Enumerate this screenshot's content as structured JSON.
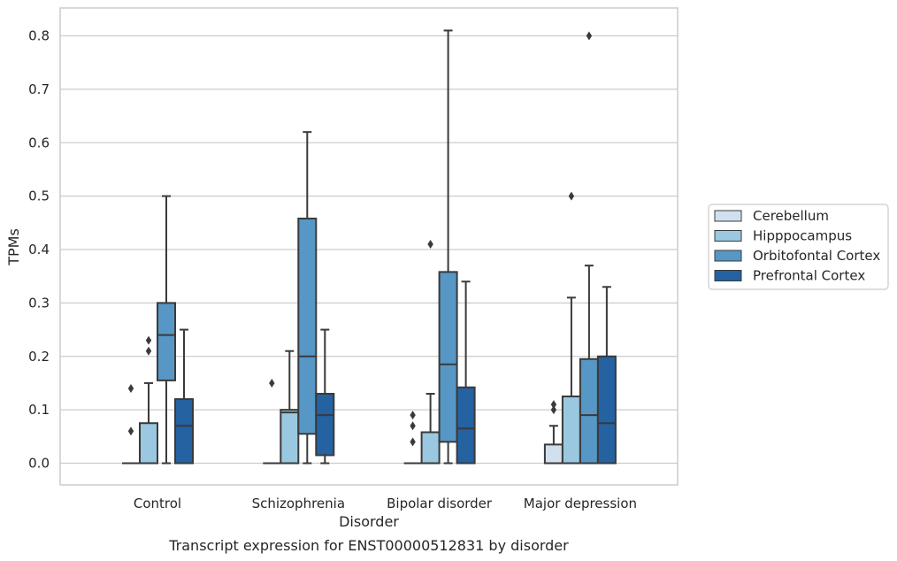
{
  "chart_data": {
    "type": "box",
    "caption": "Transcript expression for ENST00000512831 by disorder",
    "xlabel": "Disorder",
    "ylabel": "TPMs",
    "ylim": [
      -0.04,
      0.85
    ],
    "yticks": [
      "0.0",
      "0.1",
      "0.2",
      "0.3",
      "0.4",
      "0.5",
      "0.6",
      "0.7",
      "0.8"
    ],
    "grid": "horizontal",
    "legend_position": "right",
    "categories": [
      "Control",
      "Schizophrenia",
      "Bipolar disorder",
      "Major depression"
    ],
    "series": [
      {
        "name": "Cerebellum",
        "color": "#d1e0ef",
        "boxes": [
          {
            "min": 0,
            "q1": 0,
            "median": 0,
            "q3": 0,
            "max": 0,
            "outliers": [
              0.06,
              0.14
            ]
          },
          {
            "min": 0,
            "q1": 0,
            "median": 0,
            "q3": 0,
            "max": 0,
            "outliers": [
              0.15
            ]
          },
          {
            "min": 0,
            "q1": 0,
            "median": 0,
            "q3": 0,
            "max": 0,
            "outliers": [
              0.04,
              0.07,
              0.09
            ]
          },
          {
            "min": 0,
            "q1": 0,
            "median": 0,
            "q3": 0.035,
            "max": 0.07,
            "outliers": [
              0.1,
              0.11
            ]
          }
        ]
      },
      {
        "name": "Hipppocampus",
        "color": "#9ac8e0",
        "boxes": [
          {
            "min": 0,
            "q1": 0,
            "median": 0,
            "q3": 0.075,
            "max": 0.15,
            "outliers": [
              0.21,
              0.23
            ]
          },
          {
            "min": 0,
            "q1": 0,
            "median": 0.095,
            "q3": 0.1,
            "max": 0.21,
            "outliers": []
          },
          {
            "min": 0,
            "q1": 0,
            "median": 0,
            "q3": 0.058,
            "max": 0.13,
            "outliers": [
              0.41
            ]
          },
          {
            "min": 0,
            "q1": 0,
            "median": 0,
            "q3": 0.125,
            "max": 0.31,
            "outliers": [
              0.5
            ]
          }
        ]
      },
      {
        "name": "Orbitofontal Cortex",
        "color": "#5697c5",
        "boxes": [
          {
            "min": 0,
            "q1": 0.155,
            "median": 0.24,
            "q3": 0.3,
            "max": 0.5,
            "outliers": []
          },
          {
            "min": 0,
            "q1": 0.055,
            "median": 0.2,
            "q3": 0.458,
            "max": 0.62,
            "outliers": []
          },
          {
            "min": 0,
            "q1": 0.04,
            "median": 0.185,
            "q3": 0.358,
            "max": 0.81,
            "outliers": []
          },
          {
            "min": 0,
            "q1": 0,
            "median": 0.09,
            "q3": 0.195,
            "max": 0.37,
            "outliers": [
              0.8
            ]
          }
        ]
      },
      {
        "name": "Prefrontal Cortex",
        "color": "#2462a2",
        "boxes": [
          {
            "min": 0,
            "q1": 0,
            "median": 0.07,
            "q3": 0.12,
            "max": 0.25,
            "outliers": []
          },
          {
            "min": 0,
            "q1": 0.015,
            "median": 0.09,
            "q3": 0.13,
            "max": 0.25,
            "outliers": []
          },
          {
            "min": 0,
            "q1": 0,
            "median": 0.065,
            "q3": 0.142,
            "max": 0.34,
            "outliers": []
          },
          {
            "min": 0,
            "q1": 0,
            "median": 0.075,
            "q3": 0.2,
            "max": 0.33,
            "outliers": []
          }
        ]
      }
    ]
  }
}
